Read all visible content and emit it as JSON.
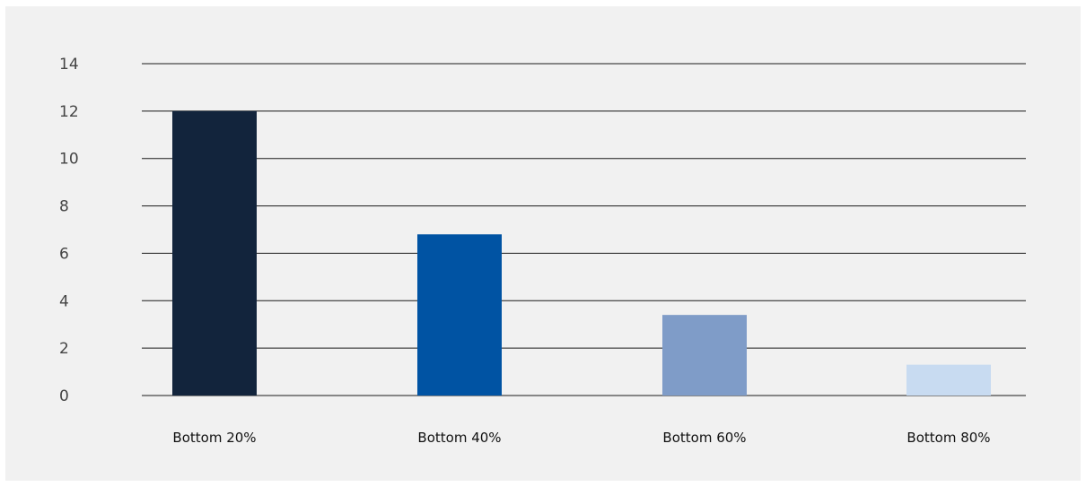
{
  "chart_data": {
    "type": "bar",
    "title": "",
    "xlabel": "",
    "ylabel": "",
    "categories": [
      "Bottom 20%",
      "Bottom 40%",
      "Bottom 60%",
      "Bottom 80%"
    ],
    "values": [
      12.0,
      6.8,
      3.4,
      1.3
    ],
    "colors": [
      "#12243c",
      "#0053a3",
      "#7f9cc8",
      "#c8dbf1"
    ],
    "ylim": [
      0,
      14
    ],
    "yticks": [
      0,
      2,
      4,
      6,
      8,
      10,
      12,
      14
    ],
    "grid": true,
    "legend": "none"
  }
}
